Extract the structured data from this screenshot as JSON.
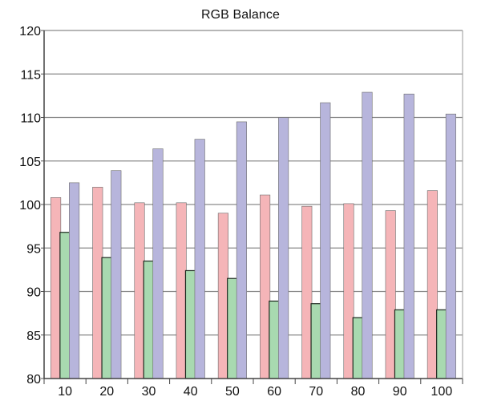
{
  "chart_data": {
    "type": "bar",
    "title": "RGB Balance",
    "categories": [
      "10",
      "20",
      "30",
      "40",
      "50",
      "60",
      "70",
      "80",
      "90",
      "100"
    ],
    "series": [
      {
        "color": "#f5b5b8",
        "values": [
          100.8,
          102.0,
          100.2,
          100.2,
          99.0,
          101.1,
          99.8,
          100.1,
          99.3,
          101.6
        ]
      },
      {
        "color": "#a8d9b0",
        "values": [
          96.8,
          93.9,
          93.5,
          92.4,
          91.5,
          88.9,
          88.6,
          87.0,
          87.9,
          87.9
        ]
      },
      {
        "color": "#b7b5dc",
        "values": [
          102.5,
          103.9,
          106.4,
          107.5,
          109.5,
          110.0,
          111.7,
          112.9,
          112.7,
          110.4
        ]
      }
    ],
    "ylim": [
      80,
      120
    ],
    "yticks": [
      "80",
      "85",
      "90",
      "95",
      "100",
      "105",
      "110",
      "115",
      "120"
    ],
    "grid": true,
    "legend": "none"
  }
}
